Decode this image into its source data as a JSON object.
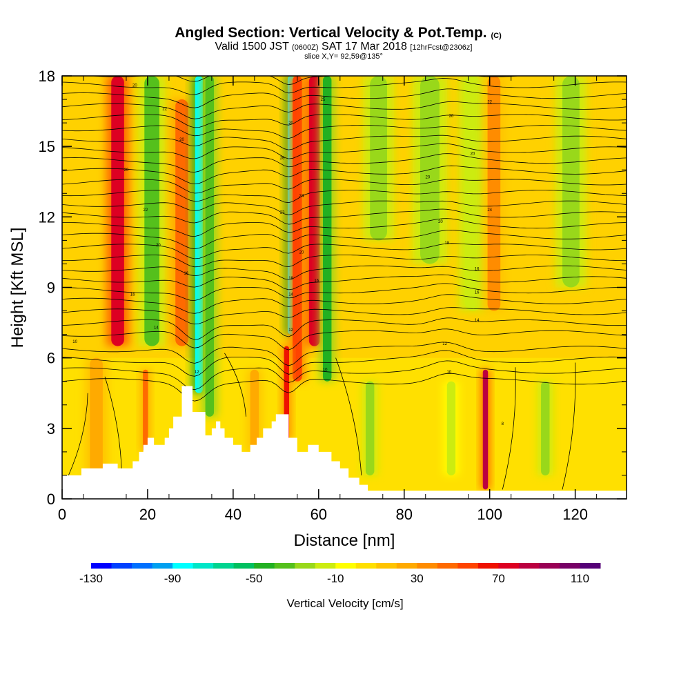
{
  "header": {
    "title": "Angled Section: Vertical Velocity & Pot.Temp.",
    "title_units": "(C)",
    "valid_prefix": "Valid 1500 JST",
    "valid_utc": "(0600Z)",
    "valid_date": "SAT 17 Mar 2018",
    "forecast": "[12hrFcst@2306z]",
    "slice": "slice X,Y= 92,59@135°"
  },
  "chart_data": {
    "type": "heatmap",
    "xlabel": "Distance [nm]",
    "ylabel": "Height [Kft MSL]",
    "xlim": [
      0,
      132
    ],
    "ylim": [
      0,
      18
    ],
    "x_ticks": [
      0,
      20,
      40,
      60,
      80,
      100,
      120
    ],
    "y_ticks": [
      0,
      3,
      6,
      9,
      12,
      15,
      18
    ],
    "colorbar": {
      "label": "Vertical Velocity [cm/s]",
      "range": [
        -130,
        120
      ],
      "step": 10,
      "tick_labels": [
        "-130",
        "-90",
        "-50",
        "-10",
        "30",
        "70",
        "110"
      ],
      "colors": [
        "#0000ff",
        "#0040ff",
        "#0070ff",
        "#00a0f0",
        "#00ffff",
        "#00e6c8",
        "#00d490",
        "#00c060",
        "#22b022",
        "#55c01c",
        "#99d81a",
        "#ccec10",
        "#ffff00",
        "#ffe000",
        "#ffc400",
        "#ffaa00",
        "#ff8c00",
        "#ff6a00",
        "#ff4400",
        "#ee1100",
        "#dd0022",
        "#bb0040",
        "#990055",
        "#770066",
        "#550077"
      ]
    },
    "velocity_bands": [
      {
        "x": 13,
        "width": 3.0,
        "value": 75,
        "top": 18,
        "bottom": 6.5
      },
      {
        "x": 21,
        "width": 3.5,
        "value": -35,
        "top": 18,
        "bottom": 6.5
      },
      {
        "x": 28,
        "width": 3.0,
        "value": 45,
        "top": 17,
        "bottom": 6.5
      },
      {
        "x": 32,
        "width": 1.8,
        "value": -85,
        "top": 18,
        "bottom": 4.5
      },
      {
        "x": 34.5,
        "width": 2.0,
        "value": -40,
        "top": 18,
        "bottom": 3.5
      },
      {
        "x": 53.5,
        "width": 1.5,
        "value": -90,
        "top": 18,
        "bottom": 7
      },
      {
        "x": 55,
        "width": 2.2,
        "value": 55,
        "top": 18,
        "bottom": 5
      },
      {
        "x": 59,
        "width": 2.5,
        "value": 75,
        "top": 18,
        "bottom": 6.5
      },
      {
        "x": 62,
        "width": 2.0,
        "value": -50,
        "top": 18,
        "bottom": 5
      },
      {
        "x": 52.5,
        "width": 1.2,
        "value": 60,
        "top": 6.5,
        "bottom": 2.5
      },
      {
        "x": 74,
        "width": 4.0,
        "value": -25,
        "top": 18,
        "bottom": 11
      },
      {
        "x": 86,
        "width": 4.5,
        "value": -30,
        "top": 18,
        "bottom": 10
      },
      {
        "x": 96,
        "width": 3.5,
        "value": -20,
        "top": 18,
        "bottom": 8
      },
      {
        "x": 101,
        "width": 3.0,
        "value": 30,
        "top": 18,
        "bottom": 8
      },
      {
        "x": 119,
        "width": 4.0,
        "value": -25,
        "top": 18,
        "bottom": 9
      },
      {
        "x": 99,
        "width": 1.2,
        "value": 80,
        "top": 5.5,
        "bottom": 0.4
      },
      {
        "x": 72,
        "width": 2.0,
        "value": -25,
        "top": 5,
        "bottom": 1
      },
      {
        "x": 113,
        "width": 2.0,
        "value": -25,
        "top": 5,
        "bottom": 1
      },
      {
        "x": 19.5,
        "width": 1.2,
        "value": 40,
        "top": 5.5,
        "bottom": 2
      },
      {
        "x": 45,
        "width": 2.0,
        "value": 20,
        "top": 5.5,
        "bottom": 2
      },
      {
        "x": 91,
        "width": 2.0,
        "value": -15,
        "top": 5,
        "bottom": 1
      },
      {
        "x": 8,
        "width": 3.0,
        "value": 20,
        "top": 6,
        "bottom": 0
      }
    ],
    "terrain": [
      [
        0,
        1.0
      ],
      [
        4.5,
        1.0
      ],
      [
        4.5,
        1.3
      ],
      [
        9.5,
        1.3
      ],
      [
        9.5,
        1.5
      ],
      [
        13,
        1.5
      ],
      [
        13,
        1.3
      ],
      [
        16.5,
        1.3
      ],
      [
        16.5,
        1.6
      ],
      [
        18,
        1.6
      ],
      [
        18,
        2.0
      ],
      [
        19,
        2.0
      ],
      [
        19,
        2.3
      ],
      [
        20,
        2.3
      ],
      [
        20,
        2.6
      ],
      [
        21.5,
        2.6
      ],
      [
        21.5,
        2.3
      ],
      [
        24,
        2.3
      ],
      [
        24,
        2.6
      ],
      [
        25,
        2.6
      ],
      [
        25,
        3.0
      ],
      [
        26,
        3.0
      ],
      [
        26,
        3.5
      ],
      [
        28,
        3.5
      ],
      [
        28,
        4.8
      ],
      [
        30.5,
        4.8
      ],
      [
        30.5,
        3.7
      ],
      [
        33.5,
        3.7
      ],
      [
        33.5,
        2.7
      ],
      [
        35,
        2.7
      ],
      [
        35,
        3.0
      ],
      [
        36,
        3.0
      ],
      [
        36,
        3.3
      ],
      [
        37,
        3.3
      ],
      [
        37,
        3.0
      ],
      [
        38,
        3.0
      ],
      [
        38,
        2.6
      ],
      [
        40,
        2.6
      ],
      [
        40,
        2.3
      ],
      [
        42,
        2.3
      ],
      [
        42,
        2.0
      ],
      [
        44,
        2.0
      ],
      [
        44,
        2.3
      ],
      [
        45.5,
        2.3
      ],
      [
        45.5,
        2.6
      ],
      [
        47,
        2.6
      ],
      [
        47,
        3.0
      ],
      [
        49,
        3.0
      ],
      [
        49,
        3.3
      ],
      [
        50,
        3.3
      ],
      [
        50,
        3.6
      ],
      [
        53,
        3.6
      ],
      [
        53,
        2.6
      ],
      [
        55,
        2.6
      ],
      [
        55,
        2.0
      ],
      [
        57.5,
        2.0
      ],
      [
        57.5,
        2.3
      ],
      [
        60,
        2.3
      ],
      [
        60,
        2.0
      ],
      [
        63,
        2.0
      ],
      [
        63,
        1.6
      ],
      [
        65,
        1.6
      ],
      [
        65,
        1.3
      ],
      [
        67,
        1.3
      ],
      [
        67,
        0.9
      ],
      [
        69.5,
        0.9
      ],
      [
        69.5,
        0.6
      ],
      [
        71.5,
        0.6
      ],
      [
        71.5,
        0.35
      ],
      [
        132,
        0.35
      ]
    ],
    "isentrope_count": 30,
    "isentrope_labels": [
      {
        "x": 17,
        "y": 17.6,
        "text": "20"
      },
      {
        "x": 24,
        "y": 16.6,
        "text": "22"
      },
      {
        "x": 28,
        "y": 15.3,
        "text": "20"
      },
      {
        "x": 15,
        "y": 14.0,
        "text": "20"
      },
      {
        "x": 19.5,
        "y": 12.3,
        "text": "22"
      },
      {
        "x": 22.5,
        "y": 10.8,
        "text": "20"
      },
      {
        "x": 29,
        "y": 9.6,
        "text": "16"
      },
      {
        "x": 16.5,
        "y": 8.7,
        "text": "16"
      },
      {
        "x": 22,
        "y": 7.3,
        "text": "14"
      },
      {
        "x": 3,
        "y": 6.7,
        "text": "10"
      },
      {
        "x": 31.5,
        "y": 5.4,
        "text": "12"
      },
      {
        "x": 53.5,
        "y": 16.0,
        "text": "20"
      },
      {
        "x": 61,
        "y": 17.0,
        "text": "25"
      },
      {
        "x": 51.5,
        "y": 14.5,
        "text": "26"
      },
      {
        "x": 56,
        "y": 12.9,
        "text": "24"
      },
      {
        "x": 51.5,
        "y": 12.2,
        "text": "23"
      },
      {
        "x": 56,
        "y": 10.5,
        "text": "20"
      },
      {
        "x": 53.5,
        "y": 9.4,
        "text": "18"
      },
      {
        "x": 59.5,
        "y": 9.3,
        "text": "16"
      },
      {
        "x": 53.5,
        "y": 8.7,
        "text": "14"
      },
      {
        "x": 53.5,
        "y": 7.2,
        "text": "12"
      },
      {
        "x": 61.5,
        "y": 5.5,
        "text": "10"
      },
      {
        "x": 100,
        "y": 16.9,
        "text": "22"
      },
      {
        "x": 91,
        "y": 16.3,
        "text": "20"
      },
      {
        "x": 96,
        "y": 14.7,
        "text": "20"
      },
      {
        "x": 85.5,
        "y": 13.7,
        "text": "20"
      },
      {
        "x": 100,
        "y": 12.3,
        "text": "24"
      },
      {
        "x": 88.5,
        "y": 11.8,
        "text": "20"
      },
      {
        "x": 90,
        "y": 10.9,
        "text": "18"
      },
      {
        "x": 97,
        "y": 9.8,
        "text": "16"
      },
      {
        "x": 97,
        "y": 8.8,
        "text": "16"
      },
      {
        "x": 97,
        "y": 7.6,
        "text": "14"
      },
      {
        "x": 89.5,
        "y": 6.6,
        "text": "12"
      },
      {
        "x": 90.5,
        "y": 5.4,
        "text": "10"
      },
      {
        "x": 103,
        "y": 3.2,
        "text": "8"
      }
    ]
  }
}
